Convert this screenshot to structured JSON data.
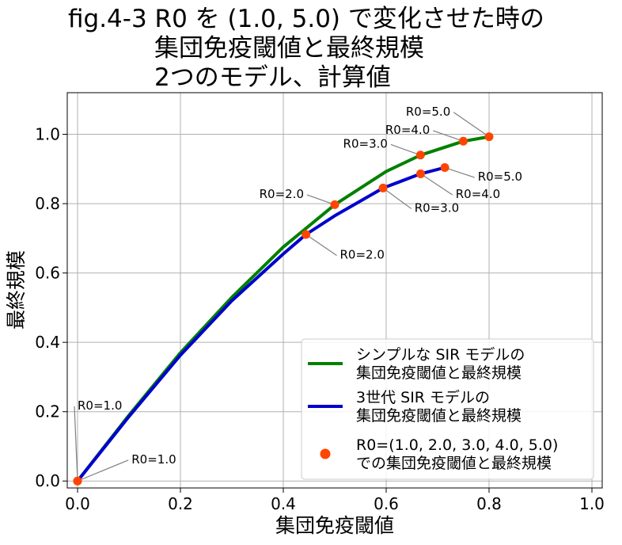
{
  "chart_data": {
    "type": "line",
    "title": [
      "fig.4-3 R0 を (1.0, 5.0) で変化させた時の",
      "集団免疫閾値と最終規模",
      "2つのモデル、計算値"
    ],
    "xlabel": "集団免疫閾値",
    "ylabel": "最終規模",
    "xlim": [
      -0.02,
      1.02
    ],
    "ylim": [
      -0.02,
      1.12
    ],
    "xticks": [
      0.0,
      0.2,
      0.4,
      0.6,
      0.8,
      1.0
    ],
    "xtick_labels": [
      "0.0",
      "0.2",
      "0.4",
      "0.6",
      "0.8",
      "1.0"
    ],
    "yticks": [
      0.0,
      0.2,
      0.4,
      0.6,
      0.8,
      1.0
    ],
    "ytick_labels": [
      "0.0",
      "0.2",
      "0.4",
      "0.6",
      "0.8",
      "1.0"
    ],
    "grid": true,
    "legend_position": "lower-right",
    "series": [
      {
        "name": "シンプルな SIR モデルの\n集団免疫閾値と最終規模",
        "color": "#008000",
        "x": [
          0.0,
          0.1,
          0.2,
          0.3,
          0.4,
          0.5,
          0.6,
          0.6667,
          0.75,
          0.8
        ],
        "y": [
          0.0,
          0.19,
          0.37,
          0.53,
          0.675,
          0.797,
          0.893,
          0.94,
          0.98,
          0.993
        ]
      },
      {
        "name": "3世代 SIR モデルの\n集団免疫閾値と最終規模",
        "color": "#0000cc",
        "x": [
          0.0,
          0.1,
          0.2,
          0.3,
          0.4,
          0.444,
          0.5,
          0.594,
          0.667,
          0.714
        ],
        "y": [
          0.0,
          0.186,
          0.363,
          0.52,
          0.655,
          0.711,
          0.765,
          0.845,
          0.886,
          0.904
        ]
      }
    ],
    "points": {
      "name": "R0=(1.0, 2.0, 3.0, 4.0, 5.0)\nでの集団免疫閾値と最終規模",
      "color": "#ff4500",
      "x": [
        0.0,
        0.5,
        0.6667,
        0.75,
        0.8,
        0.0,
        0.444,
        0.594,
        0.667,
        0.714
      ],
      "y": [
        0.0,
        0.797,
        0.94,
        0.98,
        0.993,
        0.0,
        0.711,
        0.845,
        0.886,
        0.904
      ]
    },
    "annotations": [
      {
        "text": "R0=1.0",
        "px": 0.0,
        "py": 0.0,
        "tx": 0.0,
        "ty": 0.22,
        "anchor": "start"
      },
      {
        "text": "R0=1.0",
        "px": 0.0,
        "py": 0.0,
        "tx": 0.105,
        "ty": 0.065,
        "anchor": "start"
      },
      {
        "text": "R0=2.0",
        "px": 0.5,
        "py": 0.797,
        "tx": 0.44,
        "ty": 0.83,
        "anchor": "end"
      },
      {
        "text": "R0=3.0",
        "px": 0.6667,
        "py": 0.94,
        "tx": 0.603,
        "ty": 0.975,
        "anchor": "end"
      },
      {
        "text": "R0=4.0",
        "px": 0.75,
        "py": 0.98,
        "tx": 0.685,
        "ty": 1.015,
        "anchor": "end"
      },
      {
        "text": "R0=5.0",
        "px": 0.8,
        "py": 0.993,
        "tx": 0.725,
        "ty": 1.068,
        "anchor": "end"
      },
      {
        "text": "R0=2.0",
        "px": 0.444,
        "py": 0.711,
        "tx": 0.51,
        "ty": 0.655,
        "anchor": "start"
      },
      {
        "text": "R0=3.0",
        "px": 0.594,
        "py": 0.845,
        "tx": 0.655,
        "ty": 0.79,
        "anchor": "start"
      },
      {
        "text": "R0=4.0",
        "px": 0.667,
        "py": 0.886,
        "tx": 0.735,
        "ty": 0.83,
        "anchor": "start"
      },
      {
        "text": "R0=5.0",
        "px": 0.714,
        "py": 0.904,
        "tx": 0.778,
        "ty": 0.88,
        "anchor": "start"
      }
    ]
  }
}
